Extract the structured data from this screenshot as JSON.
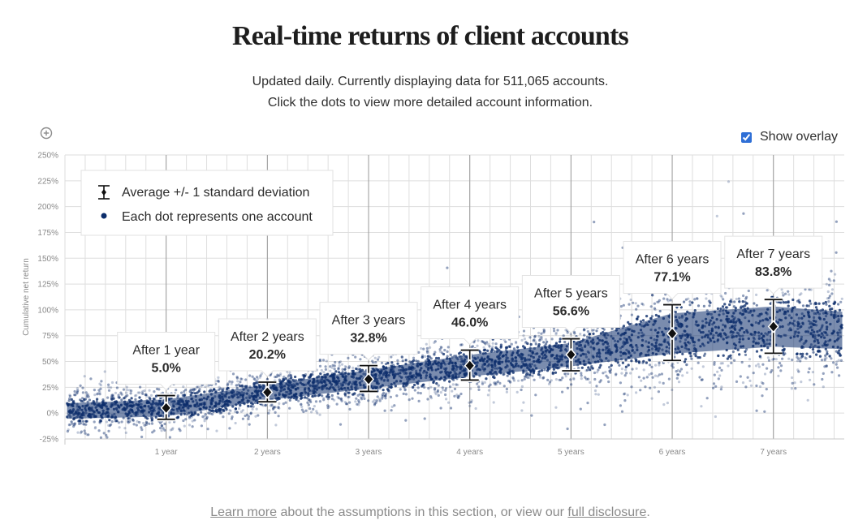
{
  "header": {
    "title": "Real-time returns of client accounts",
    "subtitle_line1": "Updated daily. Currently displaying data for 511,065 accounts.",
    "subtitle_line2": "Click the dots to view more detailed account information."
  },
  "controls": {
    "zoom_icon": "zoom-in-icon",
    "overlay_label": "Show overlay",
    "overlay_checked": true
  },
  "legend": {
    "error_bar_label": "Average +/- 1 standard deviation",
    "dot_label": "Each dot represents one account"
  },
  "footer": {
    "link1": "Learn more",
    "middle": " about the assumptions in this section, or view our ",
    "link2": "full disclosure",
    "end": "."
  },
  "colors": {
    "dots": "#0c2d6b",
    "grid": "#dedede",
    "year_lines": "#9a9a9a",
    "text_muted": "#8a8a8a"
  },
  "chart_data": {
    "type": "scatter",
    "title": "",
    "xlabel": "",
    "ylabel": "Cumulative net return",
    "xlim": [
      0,
      7.7
    ],
    "ylim": [
      -25,
      250
    ],
    "x_ticks": [
      1,
      2,
      3,
      4,
      5,
      6,
      7
    ],
    "x_tick_labels": [
      "1 year",
      "2 years",
      "3 years",
      "4 years",
      "5 years",
      "6 years",
      "7 years"
    ],
    "y_ticks": [
      -25,
      0,
      25,
      50,
      75,
      100,
      125,
      150,
      175,
      200,
      225,
      250
    ],
    "y_tick_labels": [
      "-25%",
      "0%",
      "25%",
      "50%",
      "75%",
      "100%",
      "125%",
      "150%",
      "175%",
      "200%",
      "225%",
      "250%"
    ],
    "grid": true,
    "legend_position": "top-left",
    "overlay": [
      {
        "label": "After 1 year",
        "value": "5.0%",
        "year": 1,
        "mean": 5.0,
        "low": -6,
        "high": 17
      },
      {
        "label": "After 2 years",
        "value": "20.2%",
        "year": 2,
        "mean": 20.2,
        "low": 11,
        "high": 30
      },
      {
        "label": "After 3 years",
        "value": "32.8%",
        "year": 3,
        "mean": 32.8,
        "low": 21,
        "high": 46
      },
      {
        "label": "After 4 years",
        "value": "46.0%",
        "year": 4,
        "mean": 46.0,
        "low": 32,
        "high": 61
      },
      {
        "label": "After 5 years",
        "value": "56.6%",
        "year": 5,
        "mean": 56.6,
        "low": 41,
        "high": 72
      },
      {
        "label": "After 6 years",
        "value": "77.1%",
        "year": 6,
        "mean": 77.1,
        "low": 51,
        "high": 105
      },
      {
        "label": "After 7 years",
        "value": "83.8%",
        "year": 7,
        "mean": 83.8,
        "low": 58,
        "high": 110
      }
    ],
    "point_cloud": {
      "description_series": "accounts",
      "count": 511065,
      "trend_x": [
        0,
        1,
        2,
        3,
        4,
        5,
        6,
        7,
        7.7
      ],
      "trend_mean": [
        2,
        5,
        20.2,
        32.8,
        46,
        56.6,
        77.1,
        83.8,
        80
      ],
      "trend_sd": [
        10,
        11,
        10,
        12,
        14,
        15,
        26,
        26,
        24
      ]
    }
  }
}
